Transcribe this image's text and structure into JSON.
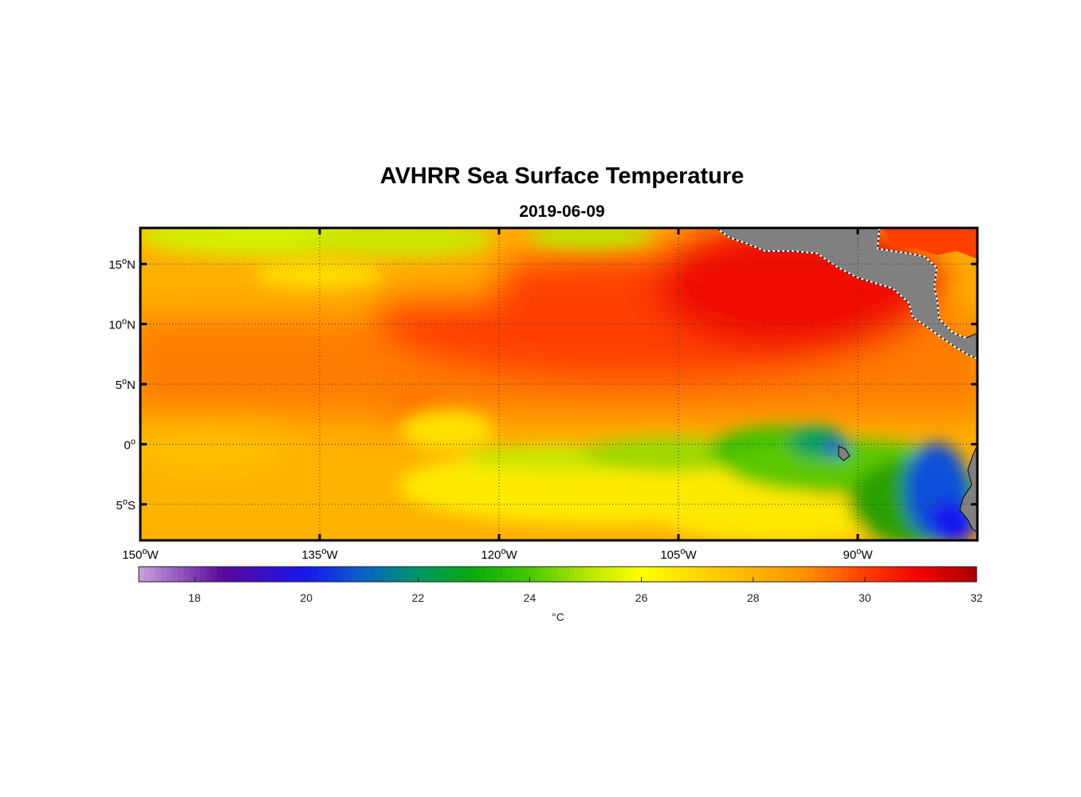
{
  "title": "AVHRR Sea Surface Temperature",
  "subtitle": "2019-06-09",
  "map": {
    "lon_range": [
      -150,
      -80
    ],
    "lat_range": [
      -8,
      18
    ],
    "lon_ticks": [
      {
        "value": -150,
        "num": "150",
        "hemi": "W"
      },
      {
        "value": -135,
        "num": "135",
        "hemi": "W"
      },
      {
        "value": -120,
        "num": "120",
        "hemi": "W"
      },
      {
        "value": -105,
        "num": "105",
        "hemi": "W"
      },
      {
        "value": -90,
        "num": "90",
        "hemi": "W"
      }
    ],
    "lat_ticks": [
      {
        "value": 15,
        "num": "15",
        "hemi": "N"
      },
      {
        "value": 10,
        "num": "10",
        "hemi": "N"
      },
      {
        "value": 5,
        "num": "5",
        "hemi": "N"
      },
      {
        "value": 0,
        "num": "0",
        "hemi": ""
      },
      {
        "value": -5,
        "num": "5",
        "hemi": "S"
      }
    ],
    "degree_symbol": "o",
    "land_color": "#808080",
    "grid": "dotted"
  },
  "colorbar": {
    "min": 17,
    "max": 32,
    "ticks": [
      18,
      20,
      22,
      24,
      26,
      28,
      30,
      32
    ],
    "unit": "°C",
    "stops": [
      {
        "v": 17,
        "c": "#c8a2dc"
      },
      {
        "v": 18.5,
        "c": "#5a0a9a"
      },
      {
        "v": 20,
        "c": "#1616f0"
      },
      {
        "v": 21,
        "c": "#0a60c8"
      },
      {
        "v": 22,
        "c": "#009664"
      },
      {
        "v": 23,
        "c": "#0aaa0a"
      },
      {
        "v": 24,
        "c": "#46c800"
      },
      {
        "v": 25,
        "c": "#b4e600"
      },
      {
        "v": 26,
        "c": "#ffff00"
      },
      {
        "v": 27,
        "c": "#ffd700"
      },
      {
        "v": 28,
        "c": "#ffb400"
      },
      {
        "v": 29,
        "c": "#ff8c00"
      },
      {
        "v": 30,
        "c": "#ff3c00"
      },
      {
        "v": 31,
        "c": "#f00000"
      },
      {
        "v": 32,
        "c": "#aa0000"
      }
    ]
  }
}
